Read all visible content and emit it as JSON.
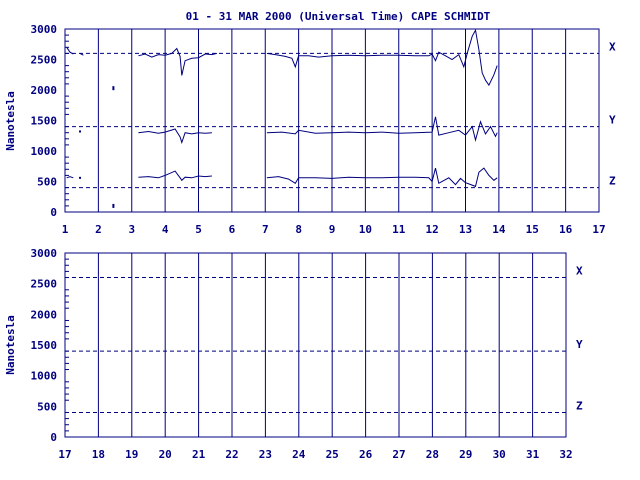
{
  "title": "01 - 31 MAR 2000 (Universal Time) CAPE SCHMIDT",
  "ylabel": "Nanotesla",
  "colors": {
    "ink": "#000080",
    "background": "#ffffff"
  },
  "chart_data": [
    {
      "type": "line",
      "x_range": [
        1,
        17
      ],
      "ylim": [
        0,
        3000
      ],
      "y_ticks": [
        "0",
        "500",
        "1000",
        "1500",
        "2000",
        "2500",
        "3000"
      ],
      "x_ticks": [
        "1",
        "2",
        "3",
        "4",
        "5",
        "6",
        "7",
        "8",
        "9",
        "10",
        "11",
        "12",
        "13",
        "14",
        "15",
        "16",
        "17"
      ],
      "ylabel": "Nanotesla",
      "grid": "vertical lines at each day",
      "baselines": [
        {
          "name": "X",
          "value": 2600
        },
        {
          "name": "Y",
          "value": 1400
        },
        {
          "name": "Z",
          "value": 400
        }
      ],
      "series": [
        {
          "name": "X",
          "segments": [
            [
              [
                1.05,
                2700
              ],
              [
                1.15,
                2620
              ],
              [
                1.25,
                2590
              ]
            ],
            [
              [
                1.45,
                2600
              ],
              [
                1.55,
                2570
              ]
            ],
            [
              [
                3.2,
                2560
              ],
              [
                3.4,
                2590
              ],
              [
                3.6,
                2540
              ],
              [
                3.8,
                2580
              ],
              [
                4.0,
                2570
              ],
              [
                4.2,
                2600
              ],
              [
                4.35,
                2680
              ],
              [
                4.45,
                2550
              ],
              [
                4.5,
                2240
              ],
              [
                4.6,
                2480
              ],
              [
                4.8,
                2520
              ],
              [
                5.0,
                2530
              ],
              [
                5.2,
                2590
              ],
              [
                5.4,
                2580
              ],
              [
                5.55,
                2600
              ]
            ],
            [
              [
                7.05,
                2600
              ],
              [
                7.3,
                2580
              ],
              [
                7.6,
                2550
              ],
              [
                7.8,
                2520
              ],
              [
                7.9,
                2380
              ],
              [
                8.0,
                2560
              ],
              [
                8.3,
                2560
              ],
              [
                8.6,
                2540
              ],
              [
                9.0,
                2560
              ],
              [
                9.5,
                2570
              ],
              [
                10.0,
                2560
              ],
              [
                10.5,
                2570
              ],
              [
                11.0,
                2570
              ],
              [
                11.5,
                2560
              ],
              [
                11.9,
                2560
              ],
              [
                12.0,
                2590
              ],
              [
                12.1,
                2480
              ],
              [
                12.2,
                2620
              ],
              [
                12.4,
                2560
              ],
              [
                12.6,
                2500
              ],
              [
                12.8,
                2580
              ],
              [
                12.95,
                2380
              ],
              [
                13.05,
                2600
              ],
              [
                13.2,
                2880
              ],
              [
                13.3,
                2980
              ],
              [
                13.4,
                2660
              ],
              [
                13.5,
                2280
              ],
              [
                13.6,
                2160
              ],
              [
                13.7,
                2080
              ],
              [
                13.85,
                2250
              ],
              [
                13.95,
                2400
              ]
            ]
          ]
        },
        {
          "name": "Y",
          "segments": [
            [
              [
                1.45,
                1320
              ]
            ],
            [
              [
                3.2,
                1300
              ],
              [
                3.5,
                1320
              ],
              [
                3.8,
                1290
              ],
              [
                4.0,
                1310
              ],
              [
                4.3,
                1360
              ],
              [
                4.45,
                1230
              ],
              [
                4.5,
                1140
              ],
              [
                4.6,
                1300
              ],
              [
                4.8,
                1280
              ],
              [
                5.0,
                1300
              ],
              [
                5.2,
                1290
              ],
              [
                5.4,
                1300
              ]
            ],
            [
              [
                7.05,
                1300
              ],
              [
                7.5,
                1310
              ],
              [
                7.9,
                1280
              ],
              [
                8.0,
                1340
              ],
              [
                8.5,
                1290
              ],
              [
                9.0,
                1300
              ],
              [
                9.5,
                1310
              ],
              [
                10.0,
                1300
              ],
              [
                10.5,
                1310
              ],
              [
                11.0,
                1290
              ],
              [
                11.5,
                1300
              ],
              [
                12.0,
                1310
              ],
              [
                12.1,
                1560
              ],
              [
                12.2,
                1260
              ],
              [
                12.5,
                1300
              ],
              [
                12.8,
                1340
              ],
              [
                13.0,
                1260
              ],
              [
                13.2,
                1400
              ],
              [
                13.3,
                1180
              ],
              [
                13.45,
                1480
              ],
              [
                13.6,
                1280
              ],
              [
                13.75,
                1400
              ],
              [
                13.9,
                1240
              ],
              [
                13.95,
                1300
              ]
            ]
          ]
        },
        {
          "name": "Z",
          "segments": [
            [
              [
                1.05,
                560
              ],
              [
                1.15,
                580
              ],
              [
                1.25,
                560
              ]
            ],
            [
              [
                1.45,
                560
              ]
            ],
            [
              [
                3.2,
                570
              ],
              [
                3.5,
                580
              ],
              [
                3.8,
                560
              ],
              [
                4.0,
                600
              ],
              [
                4.3,
                670
              ],
              [
                4.45,
                560
              ],
              [
                4.5,
                520
              ],
              [
                4.6,
                570
              ],
              [
                4.8,
                560
              ],
              [
                5.0,
                590
              ],
              [
                5.2,
                580
              ],
              [
                5.4,
                590
              ]
            ],
            [
              [
                7.05,
                560
              ],
              [
                7.4,
                580
              ],
              [
                7.7,
                540
              ],
              [
                7.9,
                470
              ],
              [
                8.0,
                560
              ],
              [
                8.5,
                560
              ],
              [
                9.0,
                550
              ],
              [
                9.5,
                570
              ],
              [
                10.0,
                560
              ],
              [
                10.5,
                560
              ],
              [
                11.0,
                570
              ],
              [
                11.5,
                570
              ],
              [
                11.9,
                560
              ],
              [
                12.0,
                500
              ],
              [
                12.1,
                720
              ],
              [
                12.2,
                470
              ],
              [
                12.5,
                560
              ],
              [
                12.7,
                450
              ],
              [
                12.85,
                550
              ],
              [
                13.0,
                480
              ],
              [
                13.1,
                460
              ],
              [
                13.3,
                420
              ],
              [
                13.4,
                650
              ],
              [
                13.55,
                720
              ],
              [
                13.7,
                600
              ],
              [
                13.85,
                520
              ],
              [
                13.95,
                560
              ]
            ]
          ]
        }
      ],
      "stray_points": [
        [
          2.45,
          2030
        ],
        [
          2.45,
          100
        ]
      ]
    },
    {
      "type": "line",
      "x_range": [
        17,
        32
      ],
      "ylim": [
        0,
        3000
      ],
      "y_ticks": [
        "0",
        "500",
        "1000",
        "1500",
        "2000",
        "2500",
        "3000"
      ],
      "x_ticks": [
        "17",
        "18",
        "19",
        "20",
        "21",
        "22",
        "23",
        "24",
        "25",
        "26",
        "27",
        "28",
        "29",
        "30",
        "31",
        "32"
      ],
      "ylabel": "Nanotesla",
      "grid": "vertical lines at each day",
      "baselines": [
        {
          "name": "X",
          "value": 2600
        },
        {
          "name": "Y",
          "value": 1400
        },
        {
          "name": "Z",
          "value": 400
        }
      ],
      "series": []
    }
  ]
}
